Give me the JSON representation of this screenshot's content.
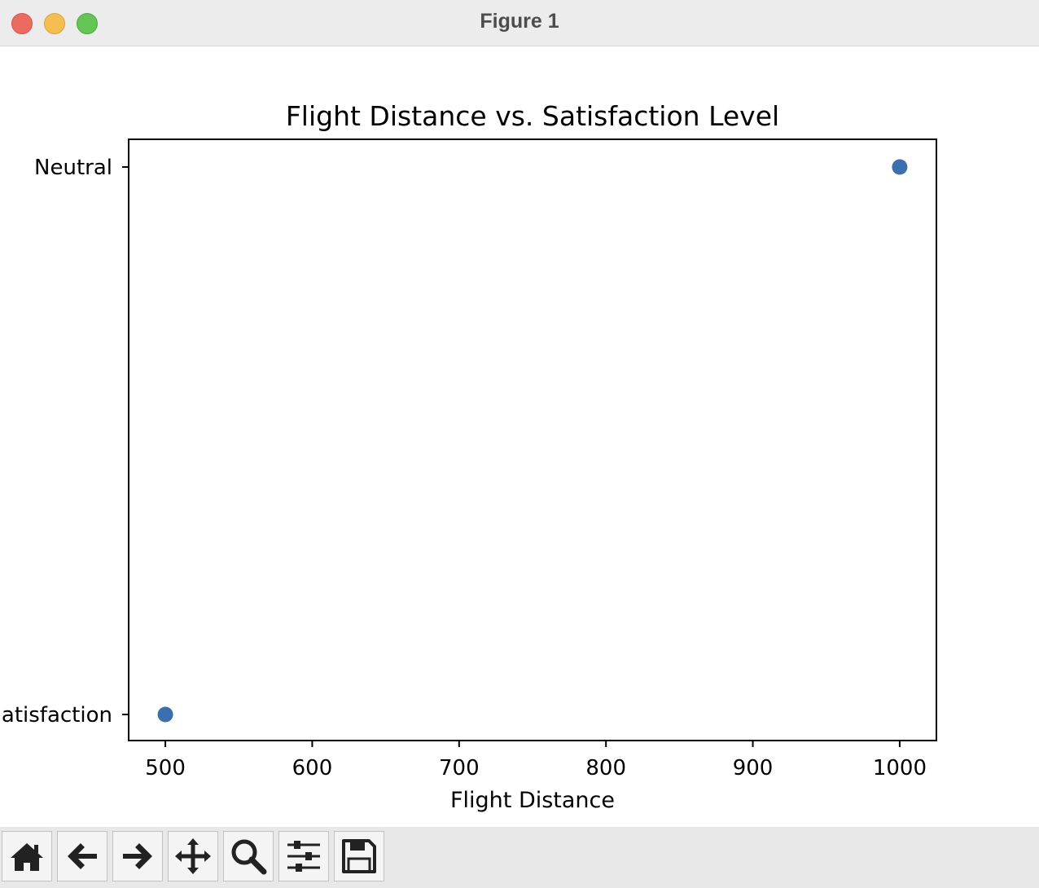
{
  "window": {
    "title": "Figure 1"
  },
  "toolbar": {
    "buttons": [
      {
        "name": "home-button",
        "icon": "home-icon"
      },
      {
        "name": "back-button",
        "icon": "arrow-left-icon"
      },
      {
        "name": "forward-button",
        "icon": "arrow-right-icon"
      },
      {
        "name": "pan-button",
        "icon": "move-icon"
      },
      {
        "name": "zoom-button",
        "icon": "search-icon"
      },
      {
        "name": "configure-subplots-button",
        "icon": "sliders-icon"
      },
      {
        "name": "save-button",
        "icon": "floppy-disk-icon"
      }
    ]
  },
  "chart_data": {
    "type": "scatter",
    "title": "Flight Distance vs. Satisfaction Level",
    "xlabel": "Flight Distance",
    "ylabel": "",
    "x_ticks": [
      500,
      600,
      700,
      800,
      900,
      1000
    ],
    "y_categories": [
      "Satisfaction",
      "Neutral"
    ],
    "y_tick_labels_visible": [
      "atisfaction",
      "Neutral"
    ],
    "xlim": [
      475,
      1025
    ],
    "points": [
      {
        "x": 500,
        "y": "Satisfaction"
      },
      {
        "x": 1000,
        "y": "Neutral"
      }
    ],
    "marker_color": "#3a6fb0",
    "grid": false,
    "legend": "none"
  }
}
